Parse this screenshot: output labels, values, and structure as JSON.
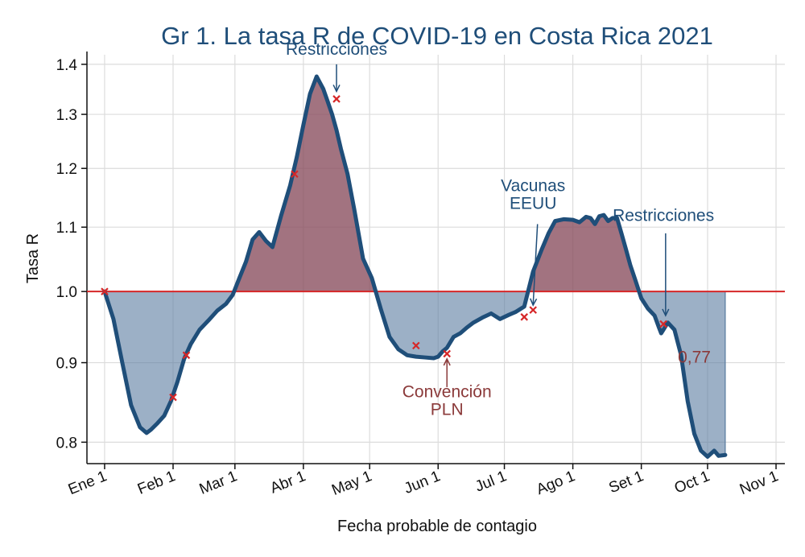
{
  "chart_data": {
    "type": "area",
    "title": "Gr 1. La tasa R de COVID-19 en Costa Rica 2021",
    "xlabel": "Fecha probable de contagio",
    "ylabel": "Tasa R",
    "x_ticks": [
      {
        "label": "Ene 1",
        "day": 0
      },
      {
        "label": "Feb 1",
        "day": 31
      },
      {
        "label": "Mar 1",
        "day": 59
      },
      {
        "label": "Abr 1",
        "day": 90
      },
      {
        "label": "May 1",
        "day": 120
      },
      {
        "label": "Jun 1",
        "day": 151
      },
      {
        "label": "Jul 1",
        "day": 181
      },
      {
        "label": "Ago 1",
        "day": 212
      },
      {
        "label": "Set 1",
        "day": 243
      },
      {
        "label": "Oct 1",
        "day": 273
      },
      {
        "label": "Nov 1",
        "day": 304
      }
    ],
    "y_ticks": [
      {
        "label": "0.8",
        "value": 0.8
      },
      {
        "label": "0.9",
        "value": 0.9
      },
      {
        "label": "1.0",
        "value": 1.0
      },
      {
        "label": "1.1",
        "value": 1.1
      },
      {
        "label": "1.2",
        "value": 1.2
      },
      {
        "label": "1.3",
        "value": 1.3
      },
      {
        "label": "1.4",
        "value": 1.4
      }
    ],
    "y_scale": "log",
    "xlim": [
      -8,
      308
    ],
    "ylim": [
      0.775,
      1.42
    ],
    "reference_line": 1.0,
    "grid": true,
    "colors": {
      "line": "#1f4e79",
      "above_fill": "#8b5060",
      "below_fill": "#5a7ca0",
      "reference": "#d62728",
      "marker": "#d62728",
      "title": "#1f4e79",
      "annotation_red": "#8b3a3a"
    },
    "series": [
      {
        "x": [
          0,
          4,
          8,
          12,
          16,
          19,
          21,
          24,
          27,
          30,
          33,
          36,
          39,
          43,
          47,
          51,
          55,
          58,
          61,
          64,
          67,
          70,
          73,
          76,
          80,
          84,
          87,
          90,
          93,
          96,
          99,
          101,
          103,
          105,
          107,
          110,
          113,
          117,
          121,
          125,
          129,
          133,
          137,
          141,
          145,
          149,
          151,
          153,
          155,
          158,
          161,
          164,
          167,
          171,
          175,
          179,
          183,
          186,
          190,
          194,
          198,
          201,
          204,
          208,
          212,
          215,
          218,
          220,
          222,
          224,
          226,
          228,
          230,
          232,
          234,
          236,
          238,
          240,
          243,
          246,
          249,
          251,
          252,
          253,
          255,
          258,
          261,
          264,
          267,
          270,
          273,
          276,
          278,
          281
        ],
        "y": [
          1.0,
          0.96,
          0.9,
          0.845,
          0.818,
          0.811,
          0.815,
          0.823,
          0.832,
          0.85,
          0.875,
          0.905,
          0.925,
          0.945,
          0.958,
          0.972,
          0.982,
          0.995,
          1.02,
          1.045,
          1.08,
          1.092,
          1.078,
          1.068,
          1.12,
          1.17,
          1.22,
          1.28,
          1.34,
          1.375,
          1.35,
          1.325,
          1.3,
          1.27,
          1.235,
          1.19,
          1.13,
          1.05,
          1.02,
          0.975,
          0.935,
          0.918,
          0.91,
          0.908,
          0.907,
          0.906,
          0.908,
          0.915,
          0.92,
          0.935,
          0.94,
          0.948,
          0.955,
          0.962,
          0.968,
          0.96,
          0.966,
          0.97,
          0.978,
          1.03,
          1.065,
          1.09,
          1.11,
          1.113,
          1.112,
          1.108,
          1.117,
          1.115,
          1.105,
          1.118,
          1.12,
          1.11,
          1.115,
          1.115,
          1.09,
          1.065,
          1.04,
          1.02,
          0.99,
          0.975,
          0.965,
          0.948,
          0.94,
          0.945,
          0.955,
          0.945,
          0.91,
          0.85,
          0.81,
          0.79,
          0.783,
          0.79,
          0.784,
          0.785
        ]
      }
    ],
    "markers": [
      {
        "x": 0,
        "y": 1.0
      },
      {
        "x": 31,
        "y": 0.855
      },
      {
        "x": 37,
        "y": 0.91
      },
      {
        "x": 86,
        "y": 1.19
      },
      {
        "x": 105,
        "y": 1.33
      },
      {
        "x": 141,
        "y": 0.923
      },
      {
        "x": 155,
        "y": 0.912
      },
      {
        "x": 190,
        "y": 0.963
      },
      {
        "x": 194,
        "y": 0.973
      },
      {
        "x": 253,
        "y": 0.953
      }
    ],
    "annotations": [
      {
        "text": "Restricciones",
        "x": 105,
        "y": 1.42,
        "color": "#1f4e79"
      },
      {
        "text": "Vacunas",
        "x": 194,
        "y": 1.16,
        "color": "#1f4e79"
      },
      {
        "text": "EEUU",
        "x": 194,
        "y": 1.13,
        "color": "#1f4e79"
      },
      {
        "text": "Restricciones",
        "x": 253,
        "y": 1.11,
        "color": "#1f4e79"
      },
      {
        "text": "Convención",
        "x": 155,
        "y": 0.855,
        "color": "#8b3a3a"
      },
      {
        "text": "PLN",
        "x": 155,
        "y": 0.833,
        "color": "#8b3a3a"
      },
      {
        "text": "0,77",
        "x": 267,
        "y": 0.9,
        "color": "#8b3a3a"
      }
    ]
  }
}
